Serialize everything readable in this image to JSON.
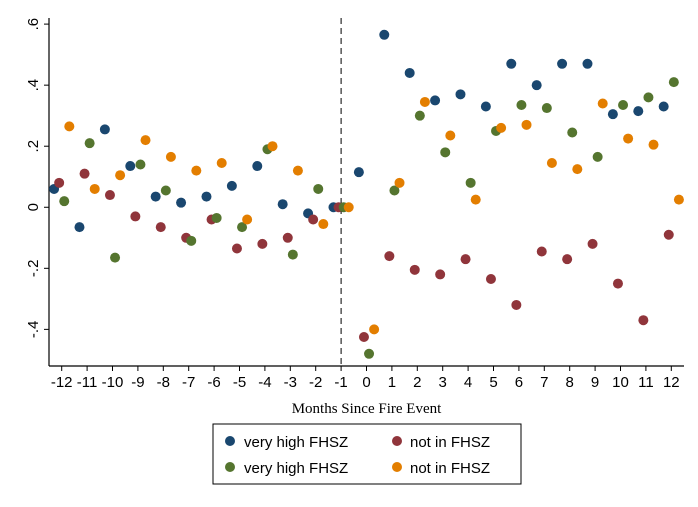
{
  "chart_data": {
    "type": "scatter",
    "title": "",
    "xlabel": "Months Since Fire Event",
    "ylabel": "",
    "xlim": [
      -12.5,
      12.5
    ],
    "ylim": [
      -0.52,
      0.62
    ],
    "x_ticks": [
      -12,
      -11,
      -10,
      -9,
      -8,
      -7,
      -6,
      -5,
      -4,
      -3,
      -2,
      -1,
      0,
      1,
      2,
      3,
      4,
      5,
      6,
      7,
      8,
      9,
      10,
      11,
      12
    ],
    "x_tick_labels": [
      "-12",
      "-11",
      "-10",
      "-9",
      "-8",
      "-7",
      "-6",
      "-5",
      "-4",
      "-3",
      "-2",
      "-1",
      "0",
      "1",
      "2",
      "3",
      "4",
      "5",
      "6",
      "7",
      "8",
      "9",
      "10",
      "11",
      "12"
    ],
    "y_ticks": [
      -0.4,
      -0.2,
      0,
      0.2,
      0.4,
      0.6
    ],
    "y_tick_labels": [
      "-.4",
      "-.2",
      "0",
      ".2",
      ".4",
      ".6"
    ],
    "reference_line_x": -1,
    "grid": false,
    "legend_position": "bottom",
    "series": [
      {
        "name": "very high FHSZ",
        "color": "#1a476f",
        "x": [
          -12.3,
          -11.3,
          -10.3,
          -9.3,
          -8.3,
          -7.3,
          -6.3,
          -5.3,
          -4.3,
          -3.3,
          -2.3,
          -1.3,
          -0.3,
          0.7,
          1.7,
          2.7,
          3.7,
          4.7,
          5.7,
          6.7,
          7.7,
          8.7,
          9.7,
          10.7,
          11.7
        ],
        "y": [
          0.06,
          -0.065,
          0.255,
          0.135,
          0.035,
          0.015,
          0.035,
          0.07,
          0.135,
          0.01,
          -0.02,
          0.0,
          0.115,
          0.565,
          0.44,
          0.35,
          0.37,
          0.33,
          0.47,
          0.4,
          0.47,
          0.47,
          0.305,
          0.315,
          0.33
        ]
      },
      {
        "name": "not in FHSZ",
        "color": "#90353b",
        "x": [
          -12.1,
          -11.1,
          -10.1,
          -9.1,
          -8.1,
          -7.1,
          -6.1,
          -5.1,
          -4.1,
          -3.1,
          -2.1,
          -1.1,
          -0.1,
          0.9,
          1.9,
          2.9,
          3.9,
          4.9,
          5.9,
          6.9,
          7.9,
          8.9,
          9.9,
          10.9,
          11.9
        ],
        "y": [
          0.08,
          0.11,
          0.04,
          -0.03,
          -0.065,
          -0.1,
          -0.04,
          -0.135,
          -0.12,
          -0.1,
          -0.04,
          0.0,
          -0.425,
          -0.16,
          -0.205,
          -0.22,
          -0.17,
          -0.235,
          -0.32,
          -0.145,
          -0.17,
          -0.12,
          -0.25,
          -0.37,
          -0.09
        ]
      },
      {
        "name": "very high FHSZ",
        "color": "#55752f",
        "x": [
          -11.9,
          -10.9,
          -9.9,
          -8.9,
          -7.9,
          -6.9,
          -5.9,
          -4.9,
          -3.9,
          -2.9,
          -1.9,
          -0.9,
          0.1,
          1.1,
          2.1,
          3.1,
          4.1,
          5.1,
          6.1,
          7.1,
          8.1,
          9.1,
          10.1,
          11.1,
          12.1
        ],
        "y": [
          0.02,
          0.21,
          -0.165,
          0.14,
          0.055,
          -0.11,
          -0.035,
          -0.065,
          0.19,
          -0.155,
          0.06,
          0.0,
          -0.48,
          0.055,
          0.3,
          0.18,
          0.08,
          0.25,
          0.335,
          0.325,
          0.245,
          0.165,
          0.335,
          0.36,
          0.41
        ]
      },
      {
        "name": "not in FHSZ",
        "color": "#e37e00",
        "x": [
          -11.7,
          -10.7,
          -9.7,
          -8.7,
          -7.7,
          -6.7,
          -5.7,
          -4.7,
          -3.7,
          -2.7,
          -1.7,
          -0.7,
          0.3,
          1.3,
          2.3,
          3.3,
          4.3,
          5.3,
          6.3,
          7.3,
          8.3,
          9.3,
          10.3,
          11.3,
          12.3
        ],
        "y": [
          0.265,
          0.06,
          0.105,
          0.22,
          0.165,
          0.12,
          0.145,
          -0.04,
          0.2,
          0.12,
          -0.055,
          0.0,
          -0.4,
          0.08,
          0.345,
          0.235,
          0.025,
          0.26,
          0.27,
          0.145,
          0.125,
          0.34,
          0.225,
          0.205,
          0.025
        ]
      }
    ]
  }
}
